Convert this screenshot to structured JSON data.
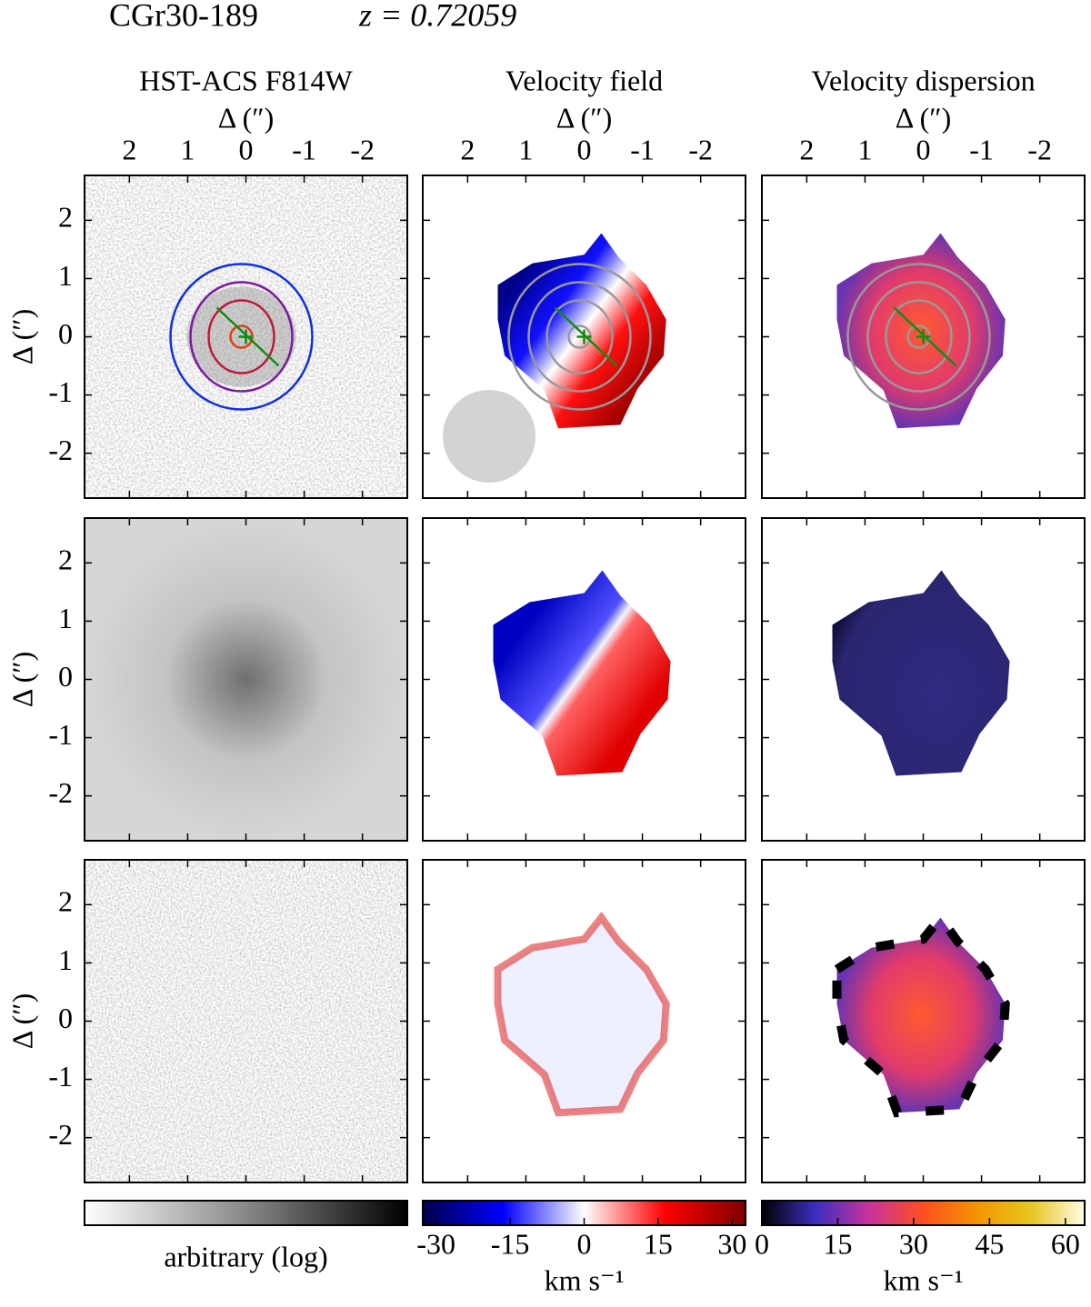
{
  "chart_data": {
    "type": "image-grid",
    "title": "CGr30-189",
    "subtitle": "z = 0.72059",
    "columns": [
      "HST-ACS F814W",
      "Velocity field",
      "Velocity dispersion"
    ],
    "x_label": "Δ   (″)",
    "y_label": "Δ   (″)",
    "xlim": [
      2.77,
      -2.77
    ],
    "ylim": [
      -2.77,
      2.77
    ],
    "xticks": [
      2,
      1,
      0,
      -1,
      -2
    ],
    "yticks": [
      2,
      1,
      0,
      -1,
      -2
    ],
    "colorbars": [
      {
        "label": "arbitrary (log)",
        "colors": [
          "#ffffff",
          "#888888",
          "#000000"
        ]
      },
      {
        "label": "km s⁻¹",
        "lim": [
          -32.7,
          32.7
        ],
        "ticks": [
          -30,
          -15,
          0,
          15,
          30
        ],
        "colors": [
          "#00004c",
          "#0000ff",
          "#ffffff",
          "#ff0000",
          "#800000"
        ]
      },
      {
        "label": "km s⁻¹",
        "lim": [
          0,
          63.8
        ],
        "ticks": [
          0,
          15,
          30,
          45,
          60
        ],
        "colors": [
          "#000000",
          "#3b2ec0",
          "#c8339a",
          "#ff4f20",
          "#f29400",
          "#e6c620",
          "#fffbe6"
        ]
      }
    ]
  }
}
